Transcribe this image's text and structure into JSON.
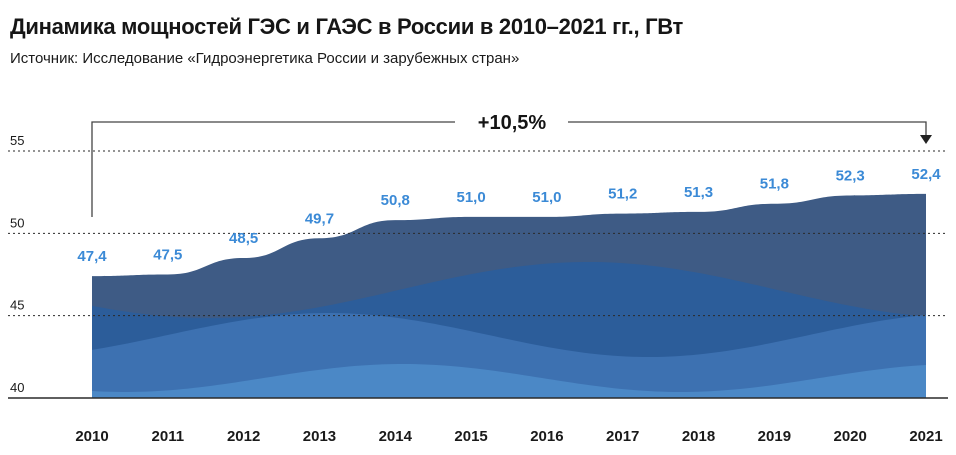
{
  "title": "Динамика мощностей ГЭС и ГАЭС в России в 2010–2021 гг., ГВт",
  "subtitle": "Источник: Исследование «Гидроэнергетика России и зарубежных стран»",
  "growth_label": "+10,5%",
  "colors": {
    "top_band": "#3e5b85",
    "mid_band": "#2c5d9a",
    "low_band": "#3d71b1",
    "bottom_band": "#4b88c6",
    "label": "#3b8ad6",
    "grid": "#2a2a2a"
  },
  "chart_data": {
    "type": "area",
    "title": "Динамика мощностей ГЭС и ГАЭС в России в 2010–2021 гг., ГВт",
    "subtitle": "Источник: Исследование «Гидроэнергетика России и зарубежных стран»",
    "categories": [
      "2010",
      "2011",
      "2012",
      "2013",
      "2014",
      "2015",
      "2016",
      "2017",
      "2018",
      "2019",
      "2020",
      "2021"
    ],
    "values": [
      47.4,
      47.5,
      48.5,
      49.7,
      50.8,
      51.0,
      51.0,
      51.2,
      51.3,
      51.8,
      52.3,
      52.4
    ],
    "value_labels": [
      "47,4",
      "47,5",
      "48,5",
      "49,7",
      "50,8",
      "51,0",
      "51,0",
      "51,2",
      "51,3",
      "51,8",
      "52,3",
      "52,4"
    ],
    "y_ticks": [
      40,
      45,
      50,
      55
    ],
    "y_tick_labels": [
      "40",
      "45",
      "50",
      "55"
    ],
    "ylim": [
      40,
      55
    ],
    "grid": "dotted horizontal",
    "xlabel": "",
    "ylabel": "",
    "annotation": "+10,5%"
  }
}
